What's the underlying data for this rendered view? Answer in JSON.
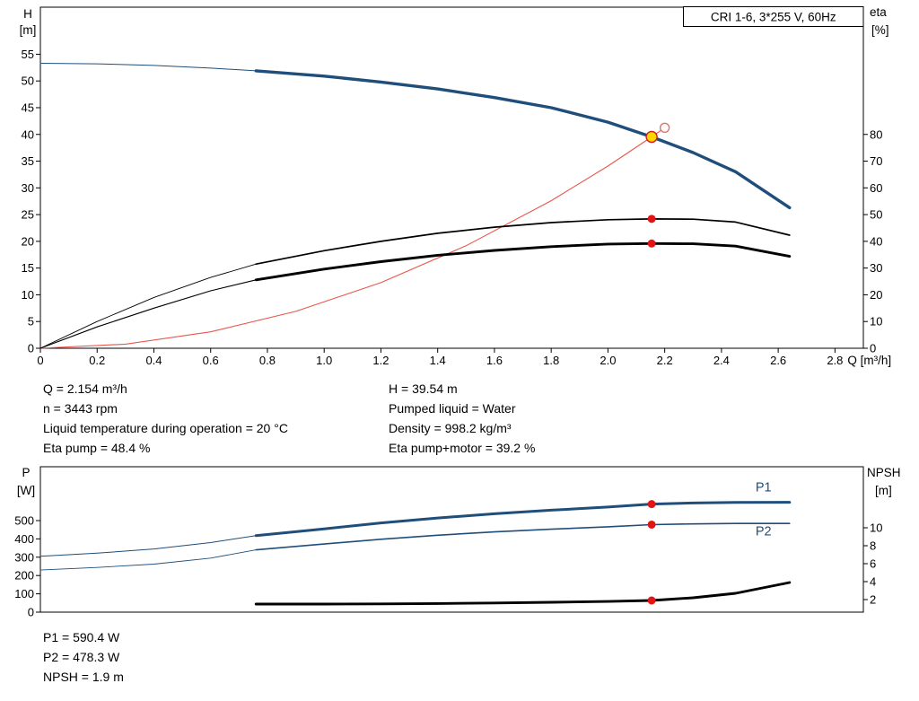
{
  "annotations": {
    "top_left": [
      "Q = 2.154 m³/h",
      "n = 3443 rpm",
      "Liquid temperature during operation = 20 °C",
      "Eta pump = 48.4 %"
    ],
    "top_right": [
      "H = 39.54 m",
      "Pumped liquid = Water",
      "Density = 998.2 kg/m³",
      "Eta pump+motor = 39.2 %"
    ],
    "bottom": [
      "P1 = 590.4 W",
      "P2 = 478.3 W",
      "NPSH = 1.9 m"
    ]
  },
  "colors": {
    "blue": "#1f4e7a",
    "black": "#000000",
    "red_curve": "#e8564c",
    "red_dot": "#e31414",
    "yellow_dot": "#ffd500",
    "frame": "#000000"
  },
  "chart_data": [
    {
      "id": "qh",
      "type": "line",
      "title": "CRI 1-6, 3*255 V, 60Hz",
      "xlabel": "Q [m³/h]",
      "ylabel_left": [
        "H",
        "[m]"
      ],
      "ylabel_right": [
        "eta",
        "[%]"
      ],
      "xlim": [
        0,
        2.9
      ],
      "ylim_left": [
        0,
        63.8
      ],
      "ylim_right": [
        0,
        127.6
      ],
      "grid": false,
      "xtick_values": [
        0,
        0.2,
        0.4,
        0.6,
        0.8,
        1.0,
        1.2,
        1.4,
        1.6,
        1.8,
        2.0,
        2.2,
        2.4,
        2.6,
        2.8
      ],
      "xtick_labels": [
        "0",
        "0.2",
        "0.4",
        "0.6",
        "0.8",
        "1.0",
        "1.2",
        "1.4",
        "1.6",
        "1.8",
        "2.0",
        "2.2",
        "2.4",
        "2.6",
        "2.8"
      ],
      "ytick_left_values": [
        0,
        5,
        10,
        15,
        20,
        25,
        30,
        35,
        40,
        45,
        50,
        55
      ],
      "ytick_left_labels": [
        "0",
        "5",
        "10",
        "15",
        "20",
        "25",
        "30",
        "35",
        "40",
        "45",
        "50",
        "55"
      ],
      "ytick_right_values": [
        0,
        10,
        20,
        30,
        40,
        50,
        60,
        70,
        80
      ],
      "ytick_right_labels": [
        "0",
        "10",
        "20",
        "30",
        "40",
        "50",
        "60",
        "70",
        "80"
      ],
      "series": [
        {
          "name": "qh-curve-lead",
          "axis": "left",
          "color": "blue",
          "width": 1,
          "x": [
            0,
            0.2,
            0.4,
            0.6,
            0.76
          ],
          "y": [
            53.3,
            53.2,
            52.9,
            52.4,
            51.9
          ]
        },
        {
          "name": "qh-curve",
          "axis": "left",
          "color": "blue",
          "width": 3.4,
          "x": [
            0.76,
            1.0,
            1.2,
            1.4,
            1.6,
            1.8,
            2.0,
            2.154,
            2.3,
            2.45,
            2.64
          ],
          "y": [
            51.9,
            50.9,
            49.8,
            48.5,
            46.9,
            45.0,
            42.3,
            39.54,
            36.6,
            33.0,
            26.3
          ]
        },
        {
          "name": "system-curve",
          "axis": "left",
          "color": "red_curve",
          "width": 1.1,
          "x": [
            0,
            0.3,
            0.6,
            0.9,
            1.2,
            1.5,
            1.8,
            2.0,
            2.154,
            2.2
          ],
          "y": [
            0,
            0.77,
            3.07,
            6.9,
            12.27,
            19.17,
            27.6,
            34.08,
            39.54,
            41.25
          ]
        },
        {
          "name": "eta-pump-curve-lead",
          "axis": "right",
          "color": "black",
          "width": 0.9,
          "x": [
            0,
            0.2,
            0.4,
            0.6,
            0.76
          ],
          "y": [
            0,
            10,
            19,
            26.5,
            31.5
          ]
        },
        {
          "name": "eta-pump-curve",
          "axis": "right",
          "color": "black",
          "width": 1.7,
          "x": [
            0.76,
            1.0,
            1.2,
            1.4,
            1.6,
            1.8,
            2.0,
            2.154,
            2.3,
            2.45,
            2.64
          ],
          "y": [
            31.5,
            36.5,
            40,
            43,
            45.3,
            47,
            48.1,
            48.4,
            48.3,
            47.2,
            42.3
          ]
        },
        {
          "name": "eta-pump-motor-curve-lead",
          "axis": "right",
          "color": "black",
          "width": 1.1,
          "x": [
            0,
            0.2,
            0.4,
            0.6,
            0.76
          ],
          "y": [
            0,
            8,
            15,
            21.5,
            25.6
          ]
        },
        {
          "name": "eta-pump-motor-curve",
          "axis": "right",
          "color": "black",
          "width": 2.9,
          "x": [
            0.76,
            1.0,
            1.2,
            1.4,
            1.6,
            1.8,
            2.0,
            2.154,
            2.3,
            2.45,
            2.64
          ],
          "y": [
            25.6,
            29.6,
            32.4,
            34.8,
            36.6,
            38.0,
            39.0,
            39.2,
            39.1,
            38.2,
            34.4
          ]
        }
      ],
      "markers": [
        {
          "name": "requested-duty-marker",
          "axis": "left",
          "x": 2.2,
          "y": 41.25,
          "style": "open_red",
          "r": 5
        },
        {
          "name": "duty-point-marker",
          "axis": "left",
          "x": 2.154,
          "y": 39.54,
          "style": "yellow",
          "r": 6
        },
        {
          "name": "eta-pump-duty-marker",
          "axis": "right",
          "x": 2.154,
          "y": 48.4,
          "style": "red",
          "r": 4.5
        },
        {
          "name": "eta-pump-motor-duty-marker",
          "axis": "right",
          "x": 2.154,
          "y": 39.2,
          "style": "red",
          "r": 4.5
        }
      ],
      "series_labels": []
    },
    {
      "id": "power",
      "type": "line",
      "title": "",
      "xlabel": "",
      "ylabel_left": [
        "P",
        "[W]"
      ],
      "ylabel_right": [
        "NPSH",
        "[m]"
      ],
      "xlim": [
        0,
        2.9
      ],
      "ylim_left": [
        0,
        794
      ],
      "ylim_right": [
        0.6,
        16.8
      ],
      "grid": false,
      "xtick_values": [],
      "xtick_labels": [],
      "ytick_left_values": [
        0,
        100,
        200,
        300,
        400,
        500
      ],
      "ytick_left_labels": [
        "0",
        "100",
        "200",
        "300",
        "400",
        "500"
      ],
      "ytick_right_values": [
        2,
        4,
        6,
        8,
        10
      ],
      "ytick_right_labels": [
        "2",
        "4",
        "6",
        "8",
        "10"
      ],
      "series": [
        {
          "name": "p1-curve-lead",
          "axis": "left",
          "color": "blue",
          "width": 1,
          "x": [
            0,
            0.2,
            0.4,
            0.6,
            0.76
          ],
          "y": [
            305,
            322,
            345,
            380,
            418
          ]
        },
        {
          "name": "p1-curve",
          "axis": "left",
          "color": "blue",
          "width": 3,
          "x": [
            0.76,
            1.0,
            1.2,
            1.4,
            1.6,
            1.8,
            2.0,
            2.154,
            2.3,
            2.45,
            2.64
          ],
          "y": [
            418,
            455,
            487,
            514,
            537,
            557,
            574,
            590,
            596,
            599,
            600
          ]
        },
        {
          "name": "p2-curve-lead",
          "axis": "left",
          "color": "blue",
          "width": 0.9,
          "x": [
            0,
            0.2,
            0.4,
            0.6,
            0.76
          ],
          "y": [
            230,
            244,
            262,
            295,
            340
          ]
        },
        {
          "name": "p2-curve",
          "axis": "left",
          "color": "blue",
          "width": 1.6,
          "x": [
            0.76,
            1.0,
            1.2,
            1.4,
            1.6,
            1.8,
            2.0,
            2.154,
            2.3,
            2.45,
            2.64
          ],
          "y": [
            340,
            372,
            398,
            420,
            438,
            453,
            466,
            478,
            482,
            484,
            484
          ]
        },
        {
          "name": "npsh-curve",
          "axis": "right",
          "color": "black",
          "width": 2.9,
          "x": [
            0.76,
            1.0,
            1.2,
            1.4,
            1.6,
            1.8,
            2.0,
            2.154,
            2.3,
            2.45,
            2.64
          ],
          "y": [
            1.5,
            1.5,
            1.52,
            1.56,
            1.62,
            1.7,
            1.79,
            1.9,
            2.2,
            2.7,
            3.9
          ]
        }
      ],
      "markers": [
        {
          "name": "p1-duty-marker",
          "axis": "left",
          "x": 2.154,
          "y": 590,
          "style": "red",
          "r": 4.5
        },
        {
          "name": "p2-duty-marker",
          "axis": "left",
          "x": 2.154,
          "y": 478,
          "style": "red",
          "r": 4.5
        },
        {
          "name": "npsh-duty-marker",
          "axis": "right",
          "x": 2.154,
          "y": 1.9,
          "style": "red",
          "r": 4.5
        }
      ],
      "series_labels": [
        {
          "name": "p1-label",
          "text": "P1",
          "axis": "left",
          "x": 2.52,
          "y": 660,
          "color": "blue"
        },
        {
          "name": "p2-label",
          "text": "P2",
          "axis": "left",
          "x": 2.52,
          "y": 420,
          "color": "blue"
        }
      ]
    }
  ]
}
